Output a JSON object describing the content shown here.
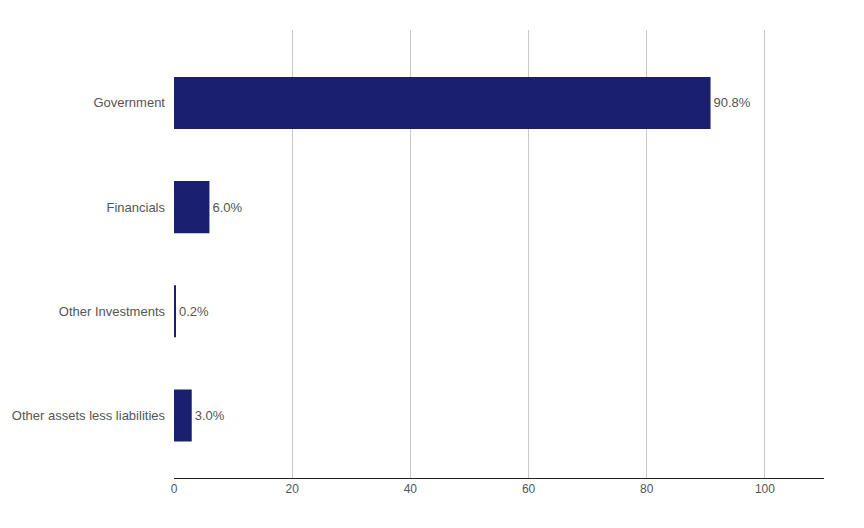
{
  "chart_data": {
    "type": "bar",
    "orientation": "horizontal",
    "categories": [
      "Other assets less liabilities",
      "Other Investments",
      "Financials",
      "Government"
    ],
    "values": [
      3.0,
      0.2,
      6.0,
      90.8
    ],
    "value_labels": [
      "3.0%",
      "0.2%",
      "6.0%",
      "90.8%"
    ],
    "data_labels": true,
    "color": "#1a1f6e",
    "xlim": [
      0,
      110
    ],
    "xticks": [
      0,
      20,
      40,
      60,
      80,
      100
    ],
    "grid": true
  }
}
